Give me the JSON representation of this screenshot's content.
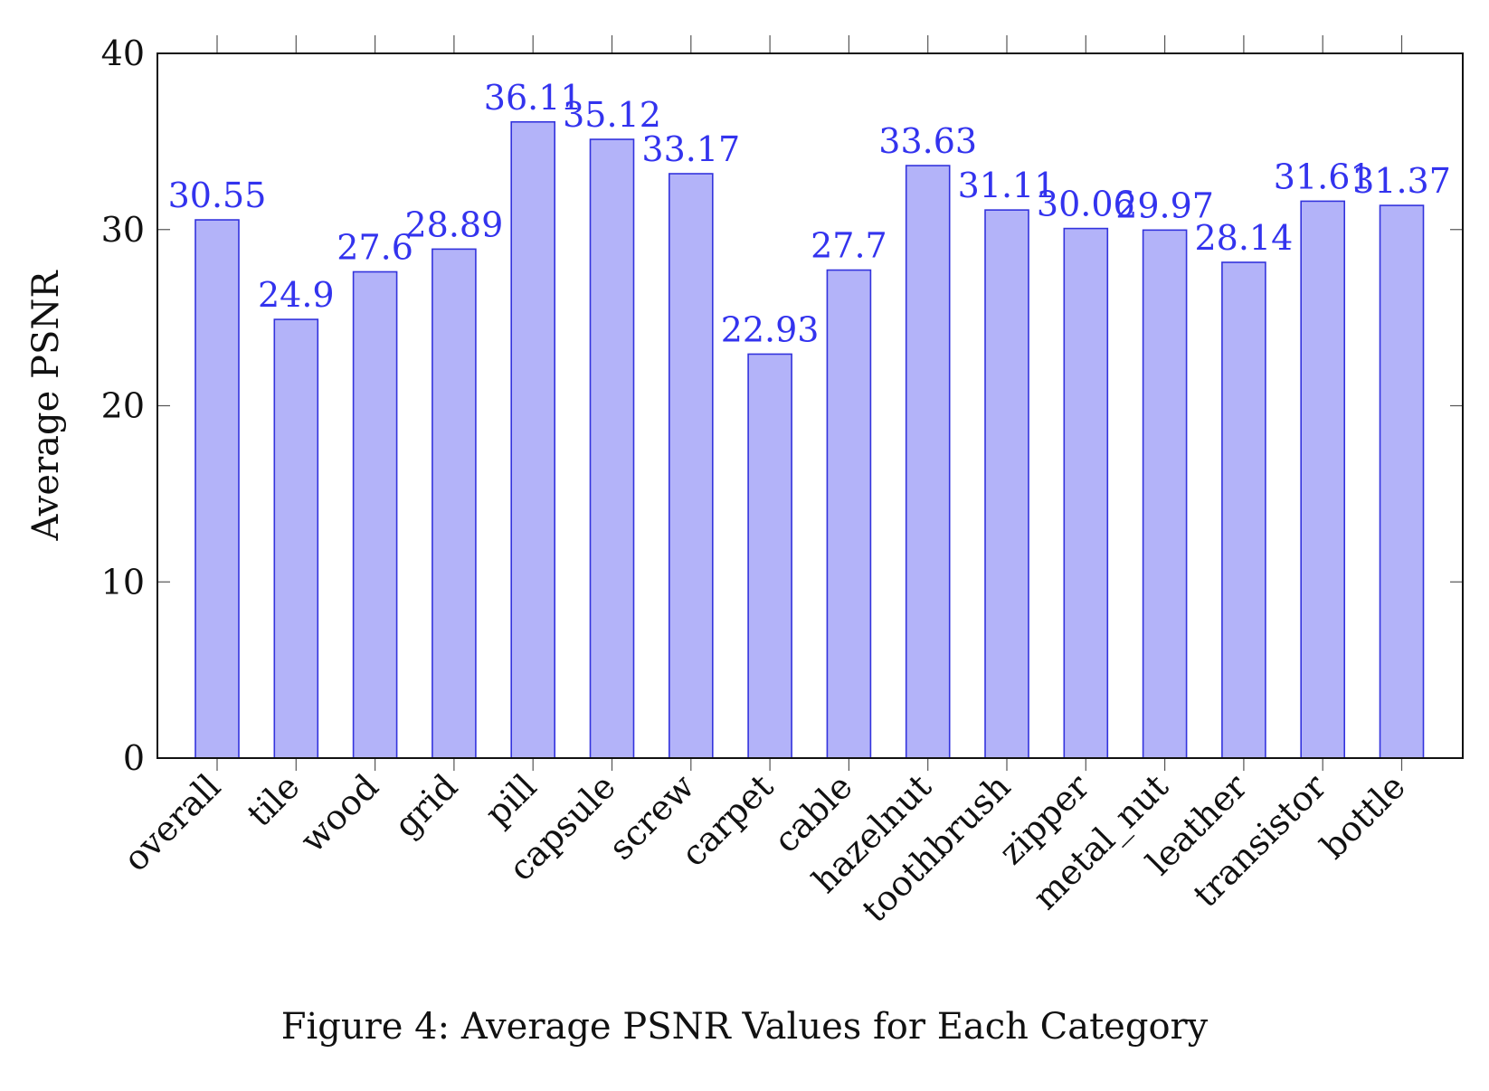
{
  "caption": "Figure 4: Average PSNR Values for Each Category",
  "chart_data": {
    "type": "bar",
    "title": "",
    "xlabel": "",
    "ylabel": "Average PSNR",
    "ylim": [
      0,
      40
    ],
    "yticks": [
      "0",
      "10",
      "20",
      "30",
      "40"
    ],
    "grid": false,
    "categories": [
      "overall",
      "tile",
      "wood",
      "grid",
      "pill",
      "capsule",
      "screw",
      "carpet",
      "cable",
      "hazelnut",
      "toothbrush",
      "zipper",
      "metal_nut",
      "leather",
      "transistor",
      "bottle"
    ],
    "values": [
      30.55,
      24.9,
      27.6,
      28.89,
      36.11,
      35.12,
      33.17,
      22.93,
      27.7,
      33.63,
      31.11,
      30.06,
      29.97,
      28.14,
      31.61,
      31.37
    ],
    "value_labels": [
      "30.55",
      "24.9",
      "27.6",
      "28.89",
      "36.11",
      "35.12",
      "33.17",
      "22.93",
      "27.7",
      "33.63",
      "31.11",
      "30.06",
      "29.97",
      "28.14",
      "31.61",
      "31.37"
    ],
    "colors": {
      "bar_fill": "#b3b3f9",
      "bar_stroke": "#3333dd",
      "label": "#3333ee",
      "axis": "#111111"
    }
  }
}
